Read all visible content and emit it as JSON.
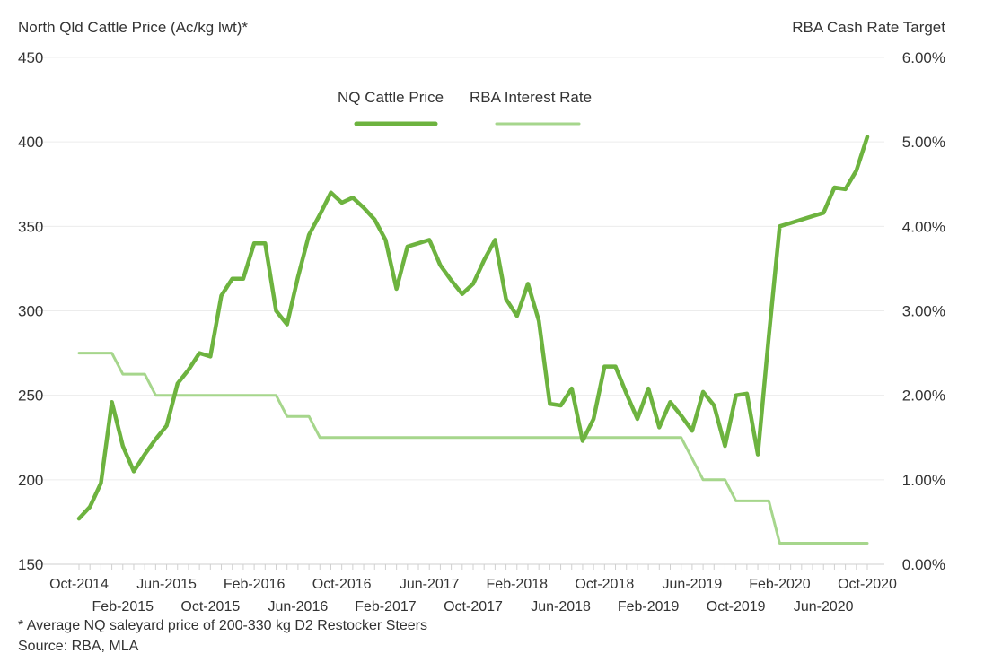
{
  "chart_data": {
    "type": "line",
    "left_axis_title": "North Qld Cattle Price (Ac/kg lwt)*",
    "right_axis_title": "RBA Cash Rate Target",
    "footnote": "* Average NQ saleyard price of 200-330 kg D2 Restocker Steers",
    "source": "Source: RBA, MLA",
    "y_left": {
      "min": 150,
      "max": 450,
      "ticks": [
        "150",
        "200",
        "250",
        "300",
        "350",
        "400",
        "450"
      ]
    },
    "y_right": {
      "min": 0,
      "max": 6,
      "ticks": [
        "0.00%",
        "1.00%",
        "2.00%",
        "3.00%",
        "4.00%",
        "5.00%",
        "6.00%"
      ]
    },
    "x_ticks": [
      {
        "label": "Oct-2014",
        "x": 0,
        "row": 1
      },
      {
        "label": "Feb-2015",
        "x": 4,
        "row": 2
      },
      {
        "label": "Jun-2015",
        "x": 8,
        "row": 1
      },
      {
        "label": "Oct-2015",
        "x": 12,
        "row": 2
      },
      {
        "label": "Feb-2016",
        "x": 16,
        "row": 1
      },
      {
        "label": "Jun-2016",
        "x": 20,
        "row": 2
      },
      {
        "label": "Oct-2016",
        "x": 24,
        "row": 1
      },
      {
        "label": "Feb-2017",
        "x": 28,
        "row": 2
      },
      {
        "label": "Jun-2017",
        "x": 32,
        "row": 1
      },
      {
        "label": "Oct-2017",
        "x": 36,
        "row": 2
      },
      {
        "label": "Feb-2018",
        "x": 40,
        "row": 1
      },
      {
        "label": "Jun-2018",
        "x": 44,
        "row": 2
      },
      {
        "label": "Oct-2018",
        "x": 48,
        "row": 1
      },
      {
        "label": "Feb-2019",
        "x": 52,
        "row": 2
      },
      {
        "label": "Jun-2019",
        "x": 56,
        "row": 1
      },
      {
        "label": "Oct-2019",
        "x": 60,
        "row": 2
      },
      {
        "label": "Feb-2020",
        "x": 64,
        "row": 1
      },
      {
        "label": "Jun-2020",
        "x": 68,
        "row": 2
      },
      {
        "label": "Oct-2020",
        "x": 72,
        "row": 1
      }
    ],
    "x_range": [
      0,
      72
    ],
    "grid": true,
    "legend": {
      "placement": "top-center"
    },
    "series": [
      {
        "name": "NQ Cattle Price",
        "axis": "left",
        "color": "#6db33f",
        "points": [
          [
            0,
            177
          ],
          [
            1,
            184
          ],
          [
            2,
            198
          ],
          [
            3,
            246
          ],
          [
            4,
            220
          ],
          [
            5,
            205
          ],
          [
            6,
            215
          ],
          [
            7,
            224
          ],
          [
            8,
            232
          ],
          [
            9,
            257
          ],
          [
            10,
            265
          ],
          [
            11,
            275
          ],
          [
            12,
            273
          ],
          [
            13,
            309
          ],
          [
            14,
            319
          ],
          [
            15,
            319
          ],
          [
            16,
            340
          ],
          [
            17,
            340
          ],
          [
            18,
            300
          ],
          [
            19,
            292
          ],
          [
            20,
            320
          ],
          [
            21,
            345
          ],
          [
            22,
            357
          ],
          [
            23,
            370
          ],
          [
            24,
            364
          ],
          [
            25,
            367
          ],
          [
            26,
            361
          ],
          [
            27,
            354
          ],
          [
            28,
            342
          ],
          [
            29,
            313
          ],
          [
            30,
            338
          ],
          [
            31,
            340
          ],
          [
            32,
            342
          ],
          [
            33,
            327
          ],
          [
            34,
            318
          ],
          [
            35,
            310
          ],
          [
            36,
            316
          ],
          [
            37,
            330
          ],
          [
            38,
            342
          ],
          [
            39,
            307
          ],
          [
            40,
            297
          ],
          [
            41,
            316
          ],
          [
            42,
            294
          ],
          [
            43,
            245
          ],
          [
            44,
            244
          ],
          [
            45,
            254
          ],
          [
            46,
            223
          ],
          [
            47,
            236
          ],
          [
            48,
            267
          ],
          [
            49,
            267
          ],
          [
            50,
            251
          ],
          [
            51,
            236
          ],
          [
            52,
            254
          ],
          [
            53,
            231
          ],
          [
            54,
            246
          ],
          [
            55,
            238
          ],
          [
            56,
            229
          ],
          [
            57,
            252
          ],
          [
            58,
            244
          ],
          [
            59,
            220
          ],
          [
            60,
            250
          ],
          [
            61,
            251
          ],
          [
            62,
            215
          ],
          [
            63,
            285
          ],
          [
            64,
            350
          ],
          [
            65,
            352
          ],
          [
            66,
            354
          ],
          [
            67,
            356
          ],
          [
            68,
            358
          ],
          [
            69,
            373
          ],
          [
            70,
            372
          ],
          [
            71,
            383
          ],
          [
            72,
            403
          ]
        ]
      },
      {
        "name": "RBA Interest Rate",
        "axis": "right",
        "color": "#a6d68c",
        "points": [
          [
            0,
            2.5
          ],
          [
            3,
            2.5
          ],
          [
            4,
            2.25
          ],
          [
            6,
            2.25
          ],
          [
            7,
            2.0
          ],
          [
            18,
            2.0
          ],
          [
            19,
            1.75
          ],
          [
            21,
            1.75
          ],
          [
            22,
            1.5
          ],
          [
            55,
            1.5
          ],
          [
            57,
            1.0
          ],
          [
            59,
            1.0
          ],
          [
            60,
            0.75
          ],
          [
            63,
            0.75
          ],
          [
            64,
            0.25
          ],
          [
            72,
            0.25
          ]
        ]
      }
    ]
  }
}
